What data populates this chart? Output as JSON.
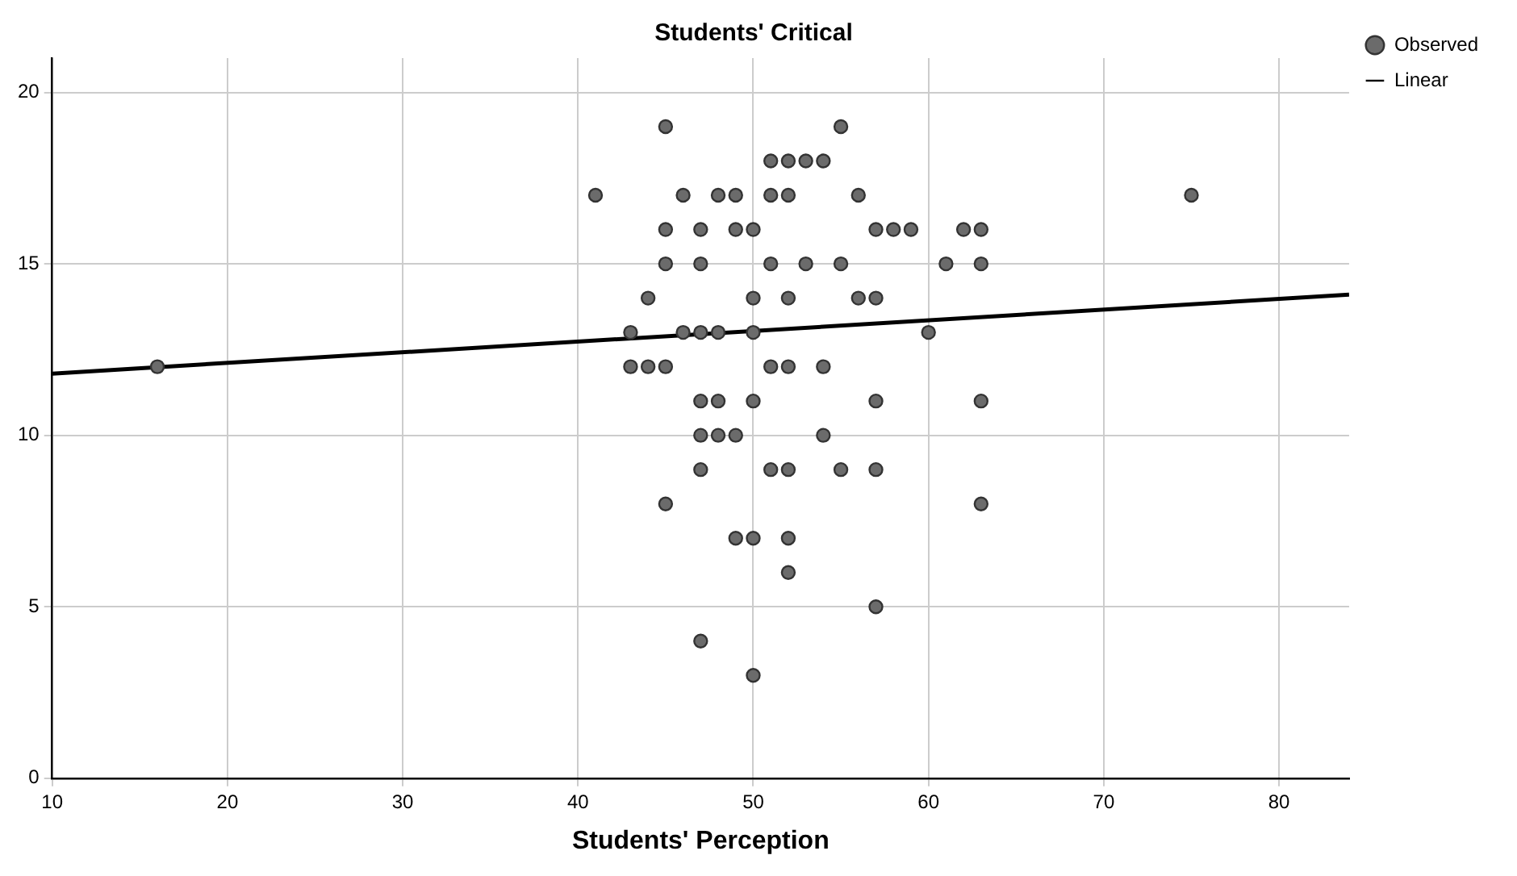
{
  "chart_data": {
    "type": "scatter",
    "title": "Students' Critical",
    "xlabel": "Students' Perception",
    "xlim": [
      10,
      84
    ],
    "xticks": [
      10,
      20,
      30,
      40,
      50,
      60,
      70,
      80
    ],
    "ylim": [
      0,
      21
    ],
    "yticks": [
      0,
      5,
      10,
      15,
      20
    ],
    "grid": true,
    "legend": "top right",
    "marker": "circle",
    "series": [
      {
        "name": "Observed",
        "color": "#6b6b6b",
        "x": [
          45,
          55,
          51,
          52,
          53,
          54,
          41,
          46,
          48,
          49,
          51,
          52,
          56,
          75,
          45,
          47,
          49,
          50,
          57,
          58,
          59,
          62,
          63,
          45,
          47,
          51,
          53,
          55,
          61,
          63,
          44,
          50,
          52,
          56,
          57,
          43,
          46,
          47,
          48,
          50,
          60,
          16,
          43,
          44,
          45,
          51,
          52,
          54,
          47,
          48,
          50,
          57,
          63,
          47,
          48,
          49,
          54,
          47,
          51,
          52,
          55,
          57,
          45,
          63,
          49,
          50,
          52,
          52,
          57,
          47,
          50
        ],
        "values": [
          19,
          19,
          18,
          18,
          18,
          18,
          17,
          17,
          17,
          17,
          17,
          17,
          17,
          17,
          16,
          16,
          16,
          16,
          16,
          16,
          16,
          16,
          16,
          15,
          15,
          15,
          15,
          15,
          15,
          15,
          14,
          14,
          14,
          14,
          14,
          13,
          13,
          13,
          13,
          13,
          13,
          12,
          12,
          12,
          12,
          12,
          12,
          12,
          11,
          11,
          11,
          11,
          11,
          10,
          10,
          10,
          10,
          9,
          9,
          9,
          9,
          9,
          8,
          8,
          7,
          7,
          7,
          6,
          5,
          4,
          3
        ]
      },
      {
        "name": "Linear",
        "type": "line",
        "color": "#000000",
        "marker": "none",
        "x": [
          10,
          84
        ],
        "values": [
          11.8,
          14.1
        ]
      }
    ]
  }
}
